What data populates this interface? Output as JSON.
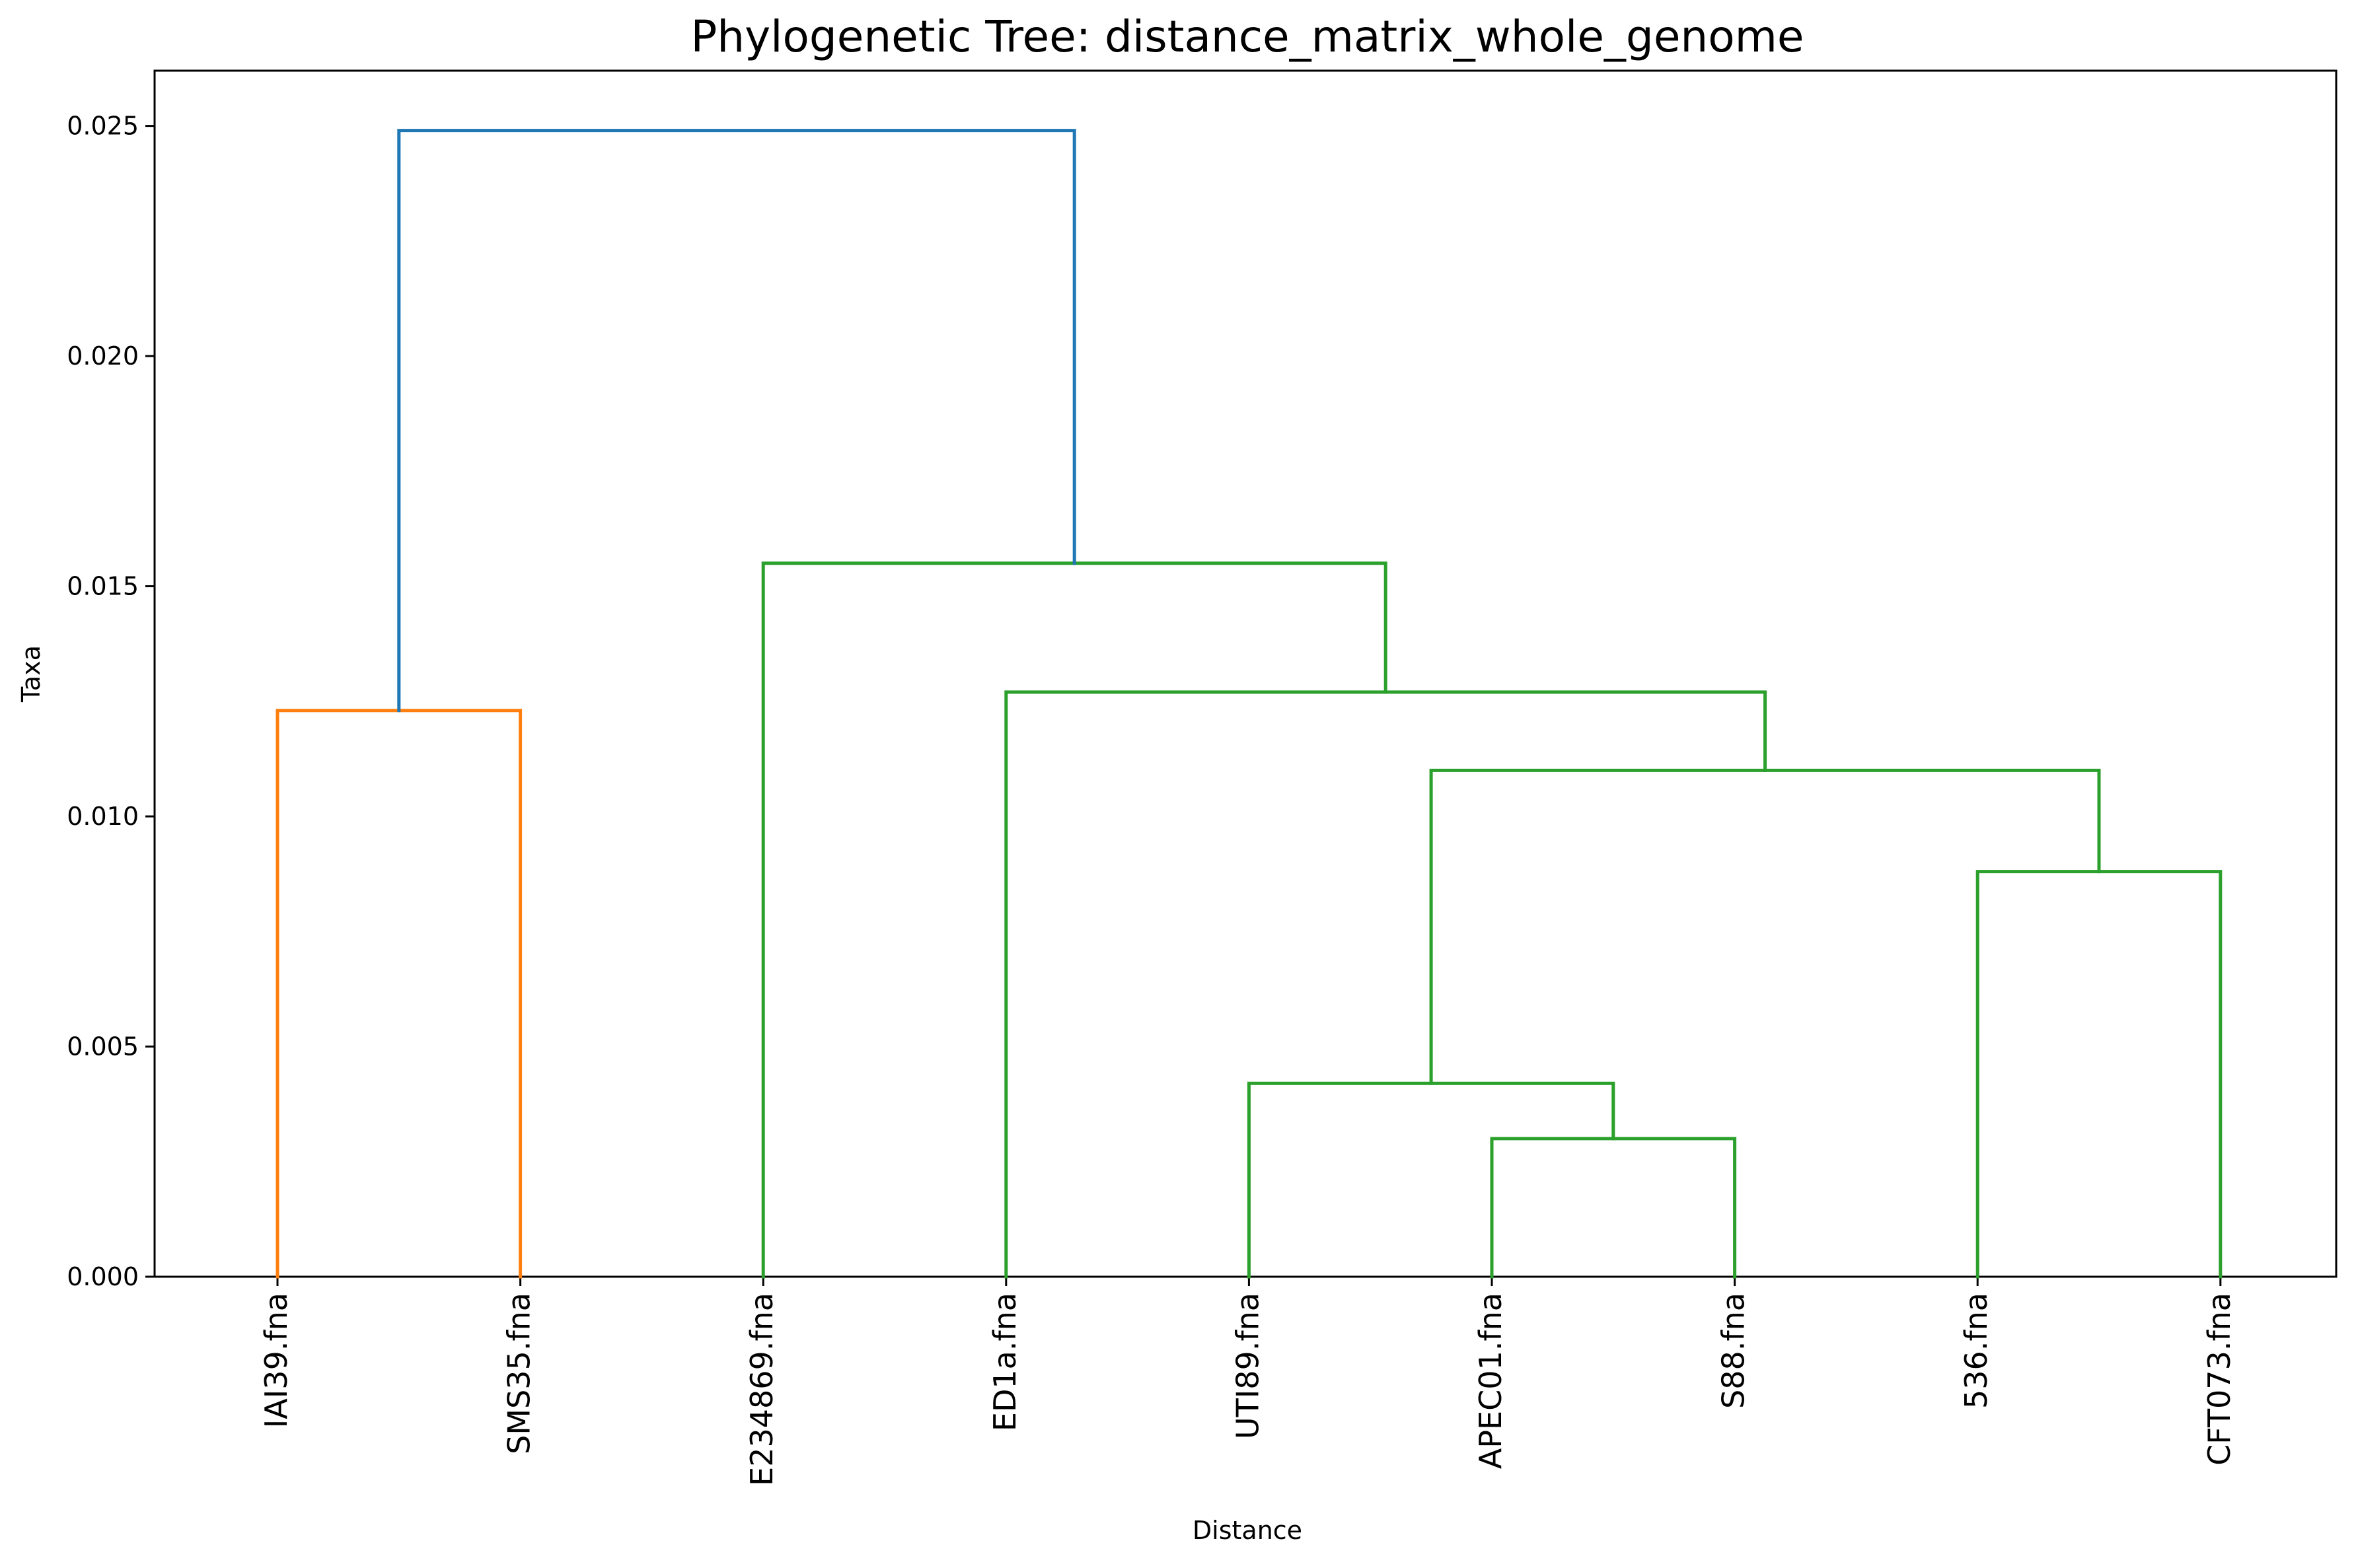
{
  "chart_data": {
    "type": "dendrogram",
    "title": "Phylogenetic Tree: distance_matrix_whole_genome",
    "xlabel": "Distance",
    "ylabel": "Taxa",
    "ylim": [
      0,
      0.0262
    ],
    "yticks": [
      {
        "value": 0.0,
        "label": "0.000"
      },
      {
        "value": 0.005,
        "label": "0.005"
      },
      {
        "value": 0.01,
        "label": "0.010"
      },
      {
        "value": 0.015,
        "label": "0.015"
      },
      {
        "value": 0.02,
        "label": "0.020"
      },
      {
        "value": 0.025,
        "label": "0.025"
      }
    ],
    "leaves": [
      "IAI39.fna",
      "SMS35.fna",
      "E234869.fna",
      "ED1a.fna",
      "UTI89.fna",
      "APEC01.fna",
      "S88.fna",
      "536.fna",
      "CFT073.fna"
    ],
    "grid": false,
    "colors": {
      "orange": "#ff7f0e",
      "green": "#2ca02c",
      "blue": "#1f77b4"
    },
    "links": [
      {
        "left": "APEC01.fna",
        "right": "S88.fna",
        "height": 0.003,
        "color": "green"
      },
      {
        "left": "UTI89.fna",
        "right": "APEC01.fna + S88.fna",
        "height": 0.0042,
        "color": "green"
      },
      {
        "left": "536.fna",
        "right": "CFT073.fna",
        "height": 0.0088,
        "color": "green"
      },
      {
        "left": "UTI89.fna + APEC01.fna + S88.fna",
        "right": "536.fna + CFT073.fna",
        "height": 0.011,
        "color": "green"
      },
      {
        "left": "ED1a.fna",
        "right": "UTI89.fna + APEC01.fna + S88.fna + 536.fna + CFT073.fna",
        "height": 0.0127,
        "color": "green"
      },
      {
        "left": "E234869.fna",
        "right": "ED1a.fna + UTI89.fna + APEC01.fna + S88.fna + 536.fna + CFT073.fna",
        "height": 0.0155,
        "color": "green"
      },
      {
        "left": "IAI39.fna",
        "right": "SMS35.fna",
        "height": 0.0123,
        "color": "orange"
      },
      {
        "left": "IAI39.fna + SMS35.fna",
        "right": "E234869.fna + ED1a.fna + UTI89.fna + APEC01.fna + S88.fna + 536.fna + CFT073.fna",
        "height": 0.0249,
        "color": "blue"
      }
    ]
  }
}
